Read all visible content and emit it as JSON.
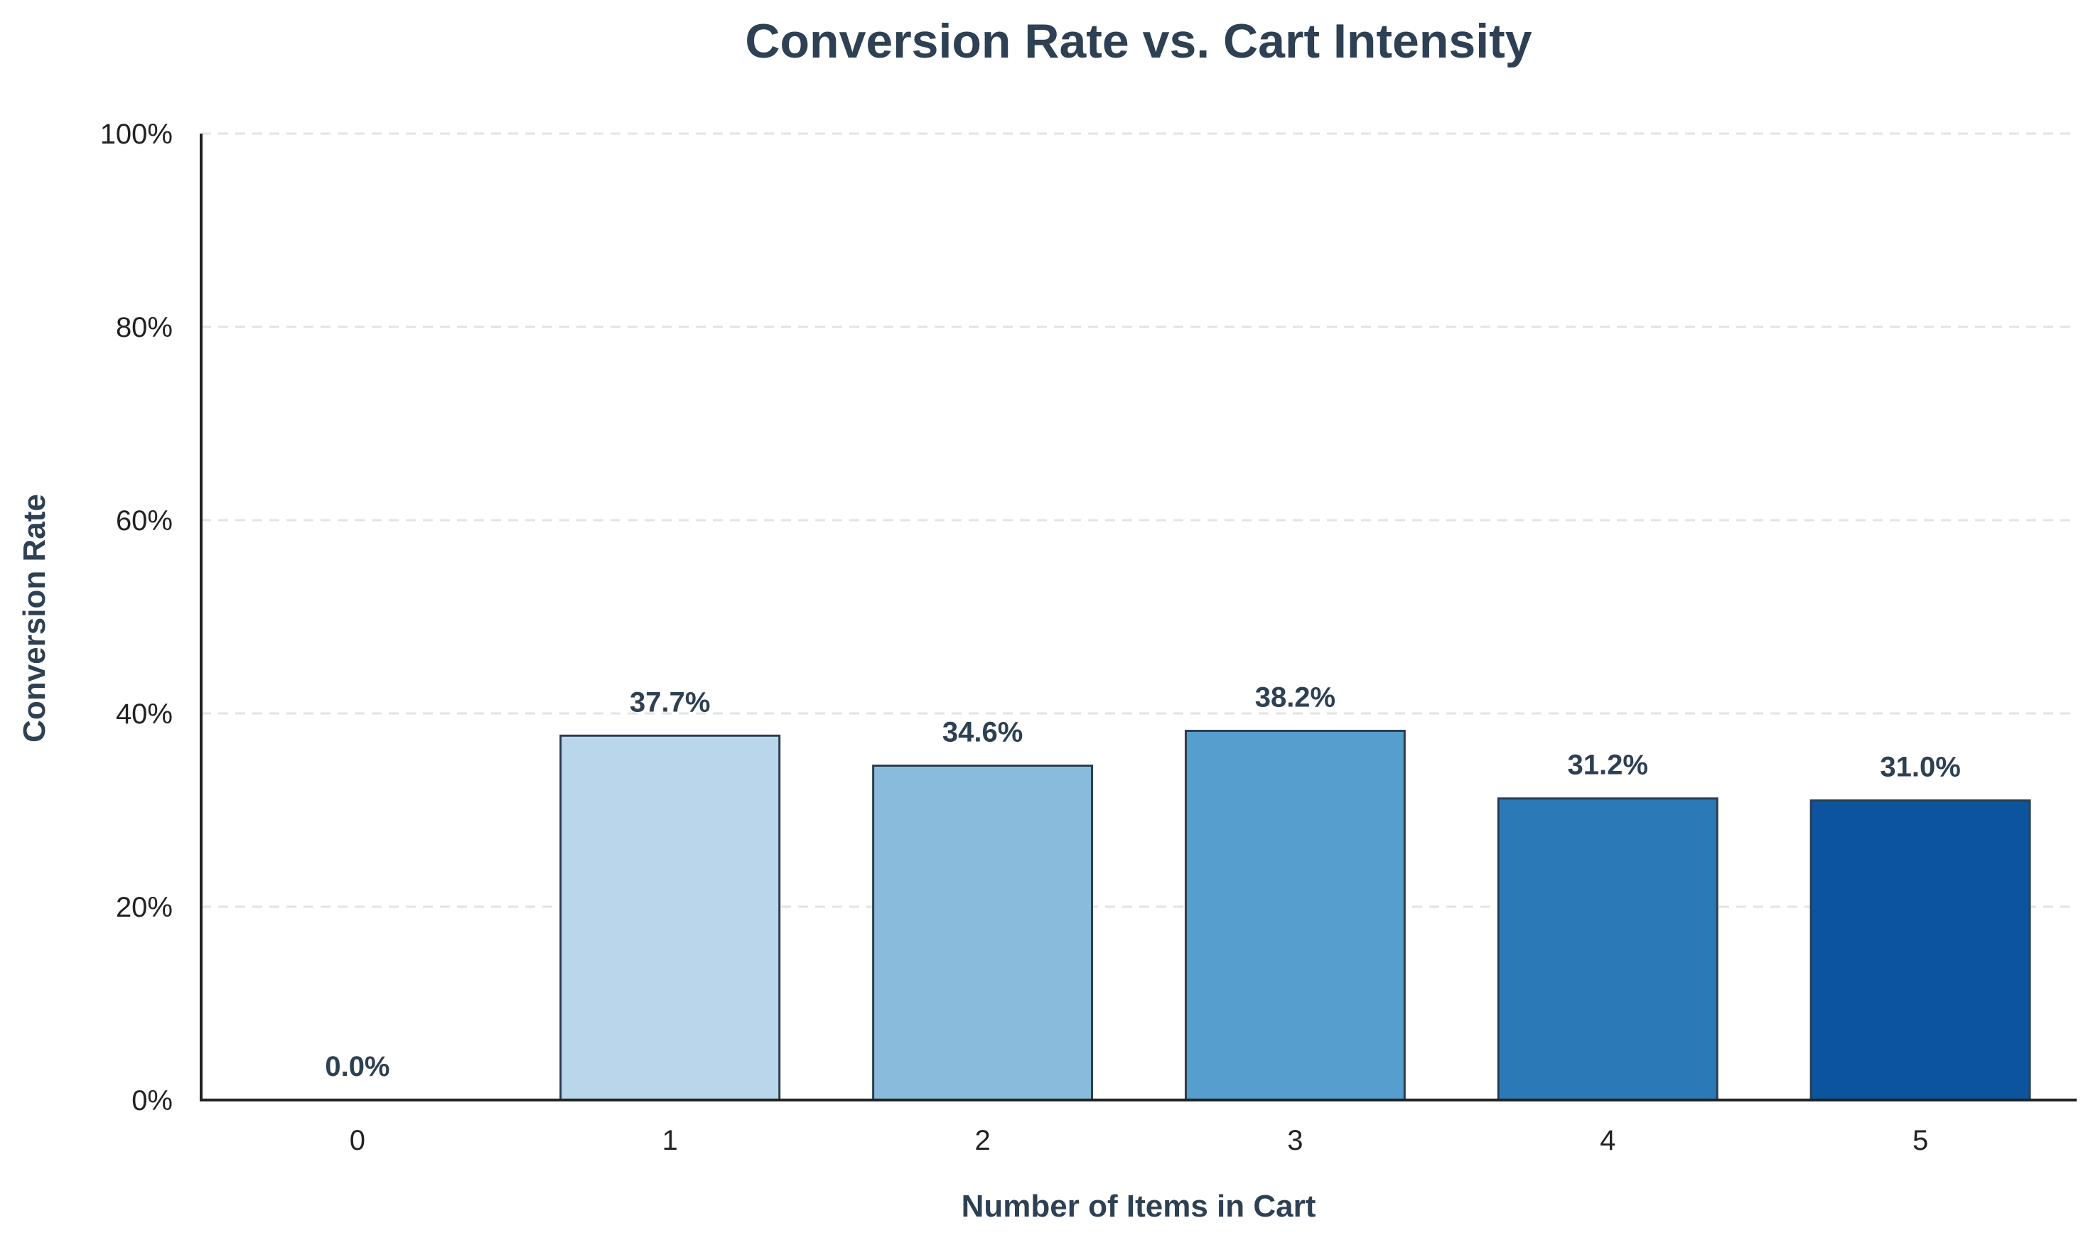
{
  "chart_data": {
    "type": "bar",
    "title": "Conversion Rate vs. Cart Intensity",
    "xlabel": "Number of Items in Cart",
    "ylabel": "Conversion Rate",
    "categories": [
      "0",
      "1",
      "2",
      "3",
      "4",
      "5"
    ],
    "values": [
      0.0,
      37.7,
      34.6,
      38.2,
      31.2,
      31.0
    ],
    "value_labels": [
      "0.0%",
      "37.7%",
      "34.6%",
      "38.2%",
      "31.2%",
      "31.0%"
    ],
    "ylim": [
      0,
      100
    ],
    "yticks": [
      0,
      20,
      40,
      60,
      80,
      100
    ],
    "ytick_labels": [
      "0%",
      "20%",
      "40%",
      "60%",
      "80%",
      "100%"
    ],
    "grid": "horizontal dashed",
    "bar_colors": [
      "#f7fbff",
      "#bad6ea",
      "#89bcdc",
      "#559ecd",
      "#2c79b8",
      "#0c559e"
    ],
    "bar_edge_color": "#2b3e50",
    "text_color": "#2e4053"
  }
}
